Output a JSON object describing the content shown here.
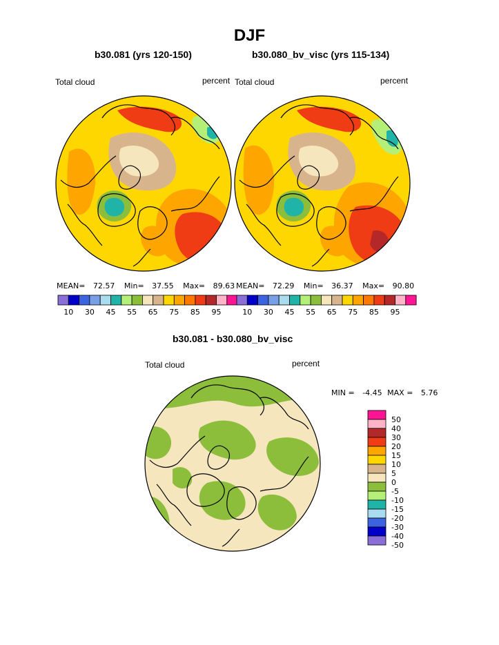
{
  "figure": {
    "title": "DJF",
    "difference_title": "b30.081 - b30.080_bv_visc"
  },
  "panels": [
    {
      "title": "b30.081 (yrs 120-150)",
      "left_label": "Total cloud",
      "right_label": "percent",
      "stats": {
        "mean_label": "MEAN=",
        "mean": "72.57",
        "min_label": "Min=",
        "min": "37.55",
        "max_label": "Max=",
        "max": "89.63"
      }
    },
    {
      "title": "b30.080_bv_visc (yrs 115-134)",
      "left_label": "Total cloud",
      "right_label": "percent",
      "stats": {
        "mean_label": "MEAN=",
        "mean": "72.29",
        "min_label": "Min=",
        "min": "36.37",
        "max_label": "Max=",
        "max": "90.80"
      }
    },
    {
      "left_label": "Total cloud",
      "right_label": "percent",
      "stats": {
        "min_label": "MIN =",
        "min": "-4.45",
        "max_label": "MAX =",
        "max": "5.76"
      }
    }
  ],
  "colorbar_abs": {
    "colors": [
      "#8a6fd6",
      "#0000c8",
      "#3c64e0",
      "#78a0e6",
      "#aadcf0",
      "#20b4a8",
      "#b4f078",
      "#8cbe3c",
      "#f5e6be",
      "#d8b48c",
      "#ffd700",
      "#ffa500",
      "#ff7800",
      "#f03c14",
      "#b4282a",
      "#ffb4c8",
      "#ff1493"
    ],
    "tick_labels": [
      "10",
      "30",
      "45",
      "55",
      "65",
      "75",
      "85",
      "95"
    ]
  },
  "colorbar_diff": {
    "colors": [
      "#ff1493",
      "#ffb4c8",
      "#b4282a",
      "#f03c14",
      "#ffa500",
      "#ffd700",
      "#d8b48c",
      "#f5e6be",
      "#8cbe3c",
      "#b4f078",
      "#20b4a8",
      "#aadcf0",
      "#3c64e0",
      "#0000c8",
      "#8a6fd6"
    ],
    "tick_labels": [
      "50",
      "40",
      "30",
      "20",
      "15",
      "10",
      "5",
      "0",
      "-5",
      "-10",
      "-15",
      "-20",
      "-30",
      "-40",
      "-50"
    ]
  }
}
